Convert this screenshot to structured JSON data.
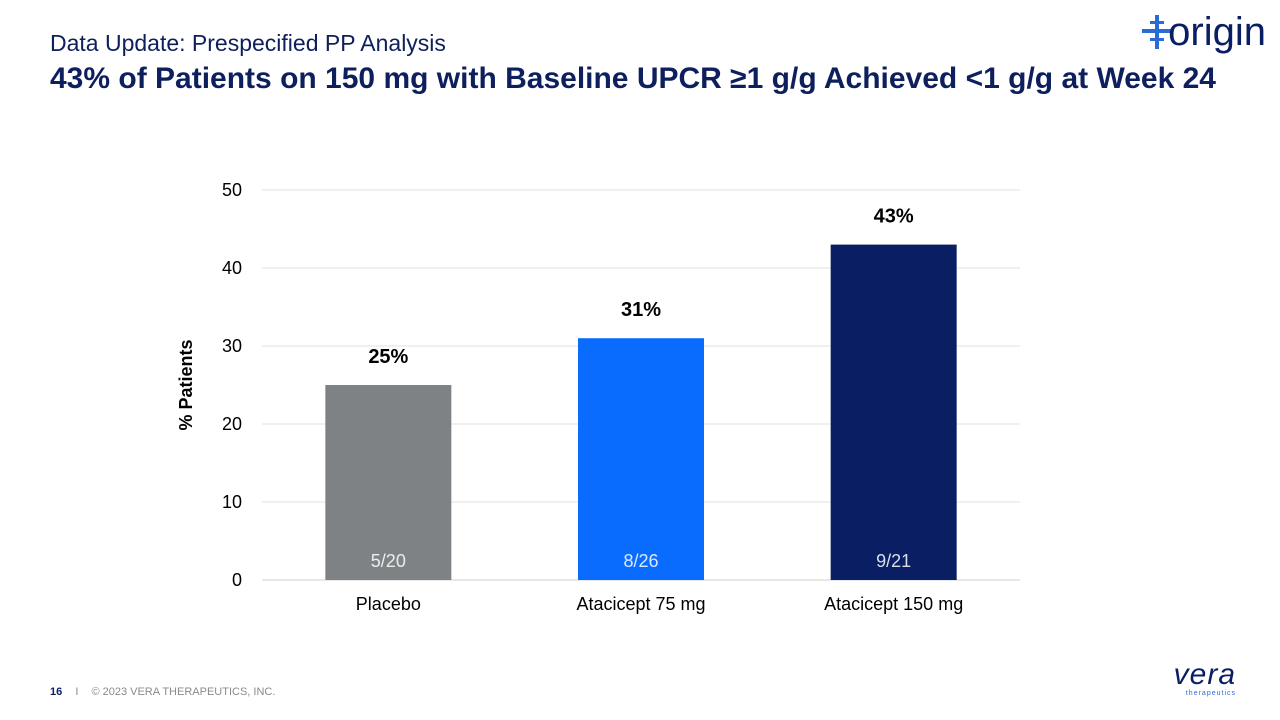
{
  "slide": {
    "subtitle": "Data Update: Prespecified PP Analysis",
    "title": "43% of Patients on 150 mg with Baseline UPCR ≥1 g/g Achieved <1 g/g at Week 24",
    "page_number": "16",
    "separator": "I",
    "copyright": "© 2023 VERA THERAPEUTICS, INC.",
    "logo_top": "origin",
    "logo_bottom": "vera",
    "logo_bottom_sub": "therapeutics"
  },
  "colors": {
    "navy": "#0a1e64",
    "bright_blue": "#0a6cff",
    "gray": "#7f8284"
  },
  "chart_data": {
    "type": "bar",
    "categories": [
      "Placebo",
      "Atacicept 75 mg",
      "Atacicept 150 mg"
    ],
    "values": [
      25,
      31,
      43
    ],
    "value_labels": [
      "25%",
      "31%",
      "43%"
    ],
    "inner_labels": [
      "5/20",
      "8/26",
      "9/21"
    ],
    "bar_colors": [
      "#7f8284",
      "#0a6cff",
      "#0a1e64"
    ],
    "ylabel": "% Patients",
    "xlabel": "",
    "ylim": [
      0,
      50
    ],
    "yticks": [
      0,
      10,
      20,
      30,
      40,
      50
    ],
    "grid": true
  }
}
